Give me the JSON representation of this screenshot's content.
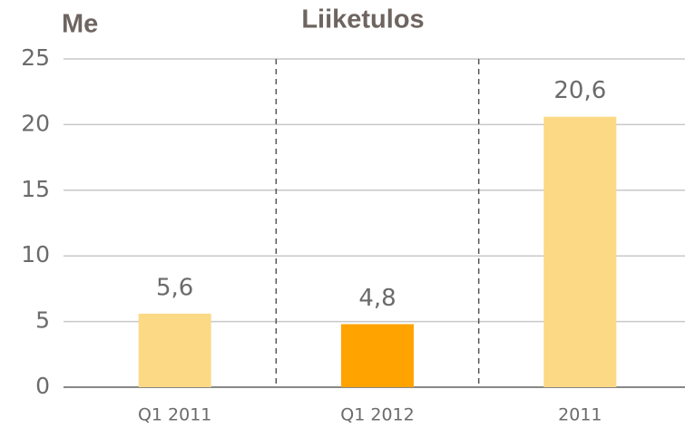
{
  "chart_data": {
    "type": "bar",
    "title": "Liiketulos",
    "y_label": "Me",
    "categories": [
      "Q1 2011",
      "Q1 2012",
      "2011"
    ],
    "values": [
      5.6,
      4.8,
      20.6
    ],
    "value_labels": [
      "5,6",
      "4,8",
      "20,6"
    ],
    "colors": [
      "#fbd985",
      "#ffa300",
      "#fbd985"
    ],
    "ylim": [
      0,
      25
    ],
    "yticks": [
      0,
      5,
      10,
      15,
      20,
      25
    ],
    "grid": true
  }
}
